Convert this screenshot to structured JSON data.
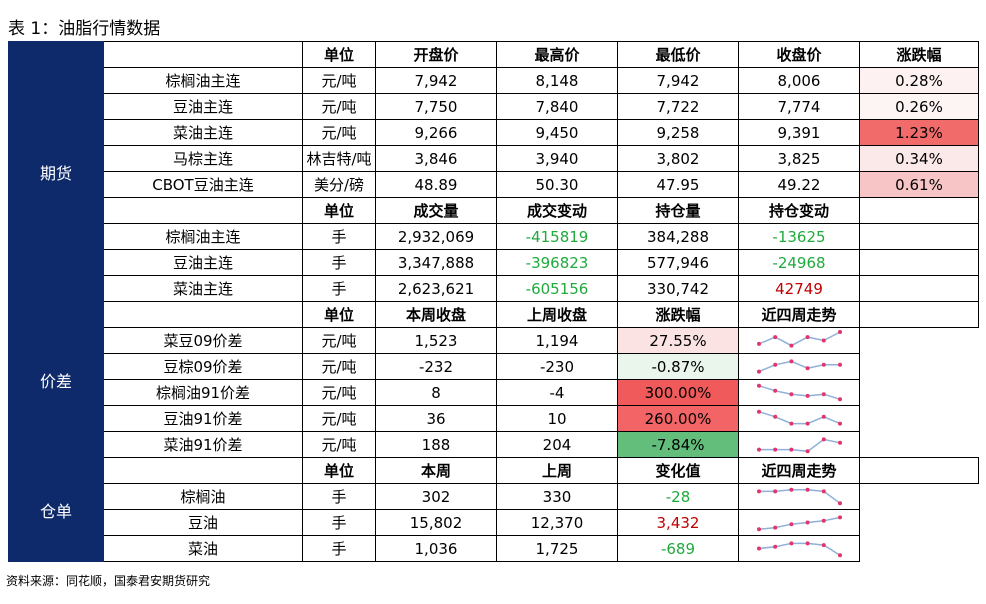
{
  "title": "表 1：油脂行情数据",
  "source": "资料来源：同花顺，国泰君安期货研究",
  "sections": [
    {
      "label": "期货",
      "rows": [
        {
          "head": [
            "单位",
            "开盘价",
            "最高价",
            "最低价",
            "收盘价",
            "涨跌幅"
          ]
        },
        {
          "cells": [
            "棕榈油主连",
            "元/吨",
            "7,942",
            "8,148",
            "7,942",
            "8,006",
            {
              "text": "0.28%",
              "bg": "#fdf1f2"
            }
          ]
        },
        {
          "cells": [
            "豆油主连",
            "元/吨",
            "7,750",
            "7,840",
            "7,722",
            "7,774",
            {
              "text": "0.26%",
              "bg": "#fdf4f4"
            }
          ]
        },
        {
          "cells": [
            "菜油主连",
            "元/吨",
            "9,266",
            "9,450",
            "9,258",
            "9,391",
            {
              "text": "1.23%",
              "bg": "#f26b6b"
            }
          ]
        },
        {
          "cells": [
            "马棕主连",
            "林吉特/吨",
            "3,846",
            "3,940",
            "3,802",
            "3,825",
            {
              "text": "0.34%",
              "bg": "#fbe9ea"
            }
          ]
        },
        {
          "cells": [
            "CBOT豆油主连",
            "美分/磅",
            "48.89",
            "50.30",
            "47.95",
            "49.22",
            {
              "text": "0.61%",
              "bg": "#f7c5c6"
            }
          ]
        },
        {
          "head": [
            "单位",
            "成交量",
            "成交变动",
            "持仓量",
            "持仓变动"
          ]
        },
        {
          "cells": [
            "棕榈油主连",
            "手",
            "2,932,069",
            {
              "text": "-415819",
              "color": "#1faa3c"
            },
            "384,288",
            {
              "text": "-13625",
              "color": "#1faa3c"
            },
            {
              "text": ""
            }
          ]
        },
        {
          "cells": [
            "豆油主连",
            "手",
            "3,347,888",
            {
              "text": "-396823",
              "color": "#1faa3c"
            },
            "577,946",
            {
              "text": "-24968",
              "color": "#1faa3c"
            },
            {
              "text": ""
            }
          ]
        },
        {
          "cells": [
            "菜油主连",
            "手",
            "2,623,621",
            {
              "text": "-605156",
              "color": "#1faa3c"
            },
            "330,742",
            {
              "text": "42749",
              "color": "#c00000"
            },
            {
              "text": ""
            }
          ]
        }
      ]
    },
    {
      "label": "价差",
      "rows": [
        {
          "head": [
            "单位",
            "本周收盘",
            "上周收盘",
            "涨跌幅",
            "近四周走势"
          ]
        },
        {
          "cells": [
            "菜豆09价差",
            "元/吨",
            "1,523",
            "1,194",
            {
              "text": "27.55%",
              "bg": "#fbe3e4"
            },
            {
              "trend": [
                3,
                7,
                2,
                7,
                5,
                10
              ]
            }
          ]
        },
        {
          "cells": [
            "豆棕09价差",
            "元/吨",
            "-232",
            "-230",
            {
              "text": "-0.87%",
              "bg": "#eaf5ec"
            },
            {
              "trend": [
                2,
                6,
                8,
                4,
                6,
                6
              ]
            }
          ]
        },
        {
          "cells": [
            "棕榈油91价差",
            "元/吨",
            "8",
            "-4",
            {
              "text": "300.00%",
              "bg": "#f05a5b"
            },
            {
              "trend": [
                9,
                6,
                4,
                3,
                4,
                1
              ]
            }
          ]
        },
        {
          "cells": [
            "豆油91价差",
            "元/吨",
            "36",
            "10",
            {
              "text": "260.00%",
              "bg": "#f26465"
            },
            {
              "trend": [
                9,
                6,
                2,
                2,
                6,
                2
              ]
            }
          ]
        },
        {
          "cells": [
            "菜油91价差",
            "元/吨",
            "188",
            "204",
            {
              "text": "-7.84%",
              "bg": "#63be7b"
            },
            {
              "trend": [
                2,
                2,
                2,
                1,
                8,
                6
              ]
            }
          ]
        }
      ]
    },
    {
      "label": "仓单",
      "rows": [
        {
          "head": [
            "单位",
            "本周",
            "上周",
            "变化值",
            "近四周走势"
          ]
        },
        {
          "cells": [
            "棕榈油",
            "手",
            "302",
            "330",
            {
              "text": "-28",
              "color": "#1faa3c"
            },
            {
              "trend": [
                8,
                8,
                9,
                9,
                8,
                1
              ]
            }
          ]
        },
        {
          "cells": [
            "豆油",
            "手",
            "15,802",
            "12,370",
            {
              "text": "3,432",
              "color": "#c00000"
            },
            {
              "trend": [
                1,
                2,
                4,
                5,
                6,
                8
              ]
            }
          ]
        },
        {
          "cells": [
            "菜油",
            "手",
            "1,036",
            "1,725",
            {
              "text": "-689",
              "color": "#1faa3c"
            },
            {
              "trend": [
                5,
                6,
                8,
                8,
                7,
                1
              ]
            }
          ]
        }
      ]
    }
  ]
}
